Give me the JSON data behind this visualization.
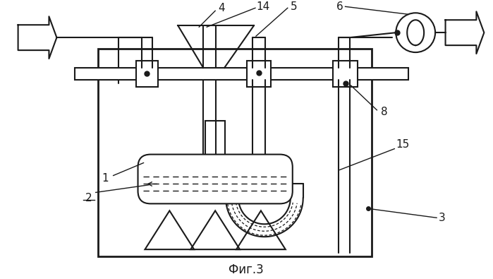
{
  "title": "Фиг.3",
  "bg": "#ffffff",
  "lc": "#1a1a1a",
  "fig_w": 6.99,
  "fig_h": 3.95,
  "dpi": 100
}
